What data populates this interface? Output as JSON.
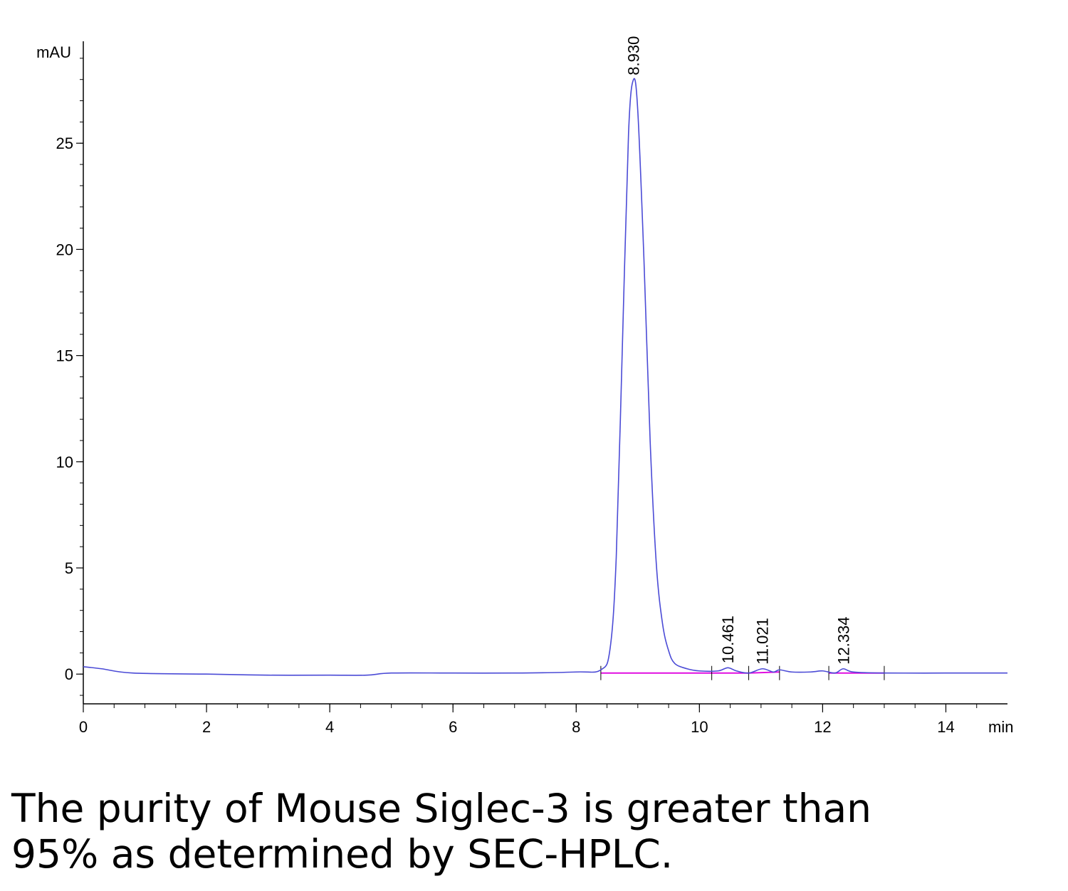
{
  "chart_data": {
    "type": "line",
    "title": "",
    "ylabel": "mAU",
    "xlabel": "min",
    "xlim": [
      0,
      15
    ],
    "ylim": [
      -1.4,
      29.8
    ],
    "x_ticks": [
      0,
      2,
      4,
      6,
      8,
      10,
      12,
      14
    ],
    "y_ticks": [
      0,
      5,
      10,
      15,
      20,
      25
    ],
    "grid": false,
    "legend": "none",
    "colors": {
      "signal": "#4b4bd6",
      "baseline": "#e00ee0",
      "axis": "#000000"
    },
    "series": [
      {
        "x": [
          0,
          0.3,
          0.8,
          2,
          3,
          4,
          4.6,
          5,
          6,
          7,
          8,
          8.4,
          8.55,
          8.65,
          8.75,
          8.85,
          8.93,
          9.0,
          9.1,
          9.2,
          9.3,
          9.4,
          9.5,
          9.6,
          9.8,
          10.0,
          10.3,
          10.461,
          10.6,
          10.8,
          11.021,
          11.2,
          11.3,
          11.5,
          11.8,
          12.0,
          12.2,
          12.334,
          12.5,
          13,
          14,
          15
        ],
        "values": [
          0.35,
          0.25,
          0.05,
          0.0,
          -0.05,
          -0.05,
          -0.05,
          0.05,
          0.05,
          0.05,
          0.1,
          0.2,
          1.2,
          5.5,
          15.5,
          25.5,
          28.0,
          26.5,
          19.5,
          11.0,
          5.2,
          2.4,
          1.1,
          0.5,
          0.25,
          0.15,
          0.15,
          0.3,
          0.15,
          0.05,
          0.25,
          0.1,
          0.2,
          0.1,
          0.1,
          0.15,
          0.05,
          0.25,
          0.1,
          0.05,
          0.05,
          0.05
        ]
      }
    ],
    "peaks": [
      {
        "label": "8.930",
        "x": 8.93,
        "y": 28.0
      },
      {
        "label": "10.461",
        "x": 10.461,
        "y": 0.3
      },
      {
        "label": "11.021",
        "x": 11.021,
        "y": 0.25
      },
      {
        "label": "12.334",
        "x": 12.334,
        "y": 0.25
      }
    ],
    "baseline_segments": [
      {
        "x1": 8.4,
        "y1": 0.05,
        "x2": 10.8,
        "y2": 0.05
      },
      {
        "x1": 10.8,
        "y1": 0.05,
        "x2": 11.3,
        "y2": 0.1
      },
      {
        "x1": 12.1,
        "y1": 0.05,
        "x2": 13.0,
        "y2": 0.05
      }
    ],
    "integration_marks": [
      8.4,
      10.2,
      10.8,
      11.3,
      12.1,
      13.0
    ]
  },
  "caption": {
    "line1": "The purity of Mouse Siglec-3 is greater than",
    "line2": "95% as determined by SEC-HPLC."
  }
}
